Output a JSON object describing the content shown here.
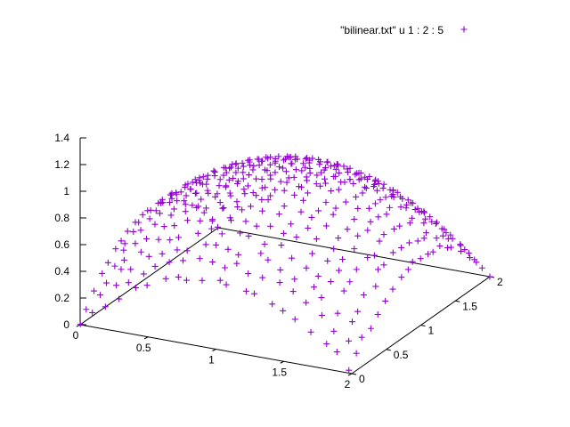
{
  "chart_data": {
    "type": "scatter",
    "plot_style": "3d-points",
    "colors": {
      "series": "#9400d3",
      "axes": "#000000",
      "background": "#ffffff"
    },
    "legend": {
      "position": "top-right",
      "entries": [
        {
          "label": "\"bilinear.txt\" u 1 : 2 : 5",
          "marker": "plus"
        }
      ]
    },
    "grid": false,
    "axes": {
      "x": {
        "range": [
          0,
          2
        ],
        "ticks": [
          "0",
          "0.5",
          "1",
          "1.5",
          "2"
        ]
      },
      "y": {
        "range": [
          0,
          2
        ],
        "ticks": [
          "0",
          "0.5",
          "1",
          "1.5",
          "2"
        ]
      },
      "z": {
        "range": [
          0,
          1.4
        ],
        "ticks": [
          "0",
          "0.2",
          "0.4",
          "0.6",
          "0.8",
          "1",
          "1.2",
          "1.4"
        ]
      }
    },
    "series": [
      {
        "label": "\"bilinear.txt\" u 1 : 2 : 5",
        "surface": "z = x(2 - x)/2 + y(2 - y)/2 on [0,2]x[0,2]",
        "sample_step": 0.1,
        "jitter": 0.025
      }
    ]
  }
}
